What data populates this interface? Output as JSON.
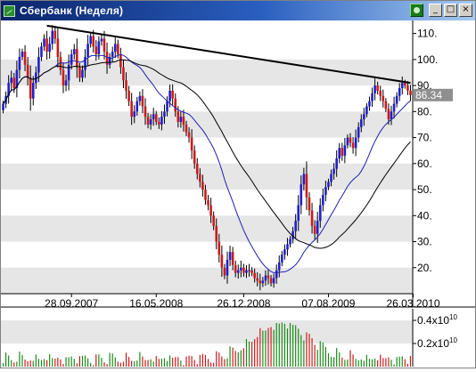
{
  "window": {
    "title": "Сбербанк (Неделя)",
    "controls": {
      "minimize": "_",
      "maximize": "□",
      "close": "×"
    }
  },
  "colors": {
    "background": "#ffffff",
    "stripe": "#e6e6e6",
    "candle_up": "#1f1fcc",
    "candle_down": "#cc1a1a",
    "ma_fast": "#2020b0",
    "ma_slow": "#000000",
    "trendline": "#000000",
    "last_price_bg": "#8f8f8f"
  },
  "chart_data": {
    "type": "candlestick",
    "title": "Сбербанк (Неделя)",
    "xlabel": "",
    "ylabel": "",
    "ylim": [
      10,
      115
    ],
    "y_ticks": [
      "10",
      "20",
      "30",
      "40",
      "50",
      "60",
      "70",
      "80",
      "90",
      "100",
      "110"
    ],
    "y_tick_labels_shown": [
      "",
      "20.",
      "30.",
      "40.",
      "50.",
      "60.",
      "70.",
      "80.",
      "90.",
      "100.",
      "110."
    ],
    "x_tick_labels": [
      "28.09.2007",
      "16.05.2008",
      "26.12.2008",
      "07.08.2009",
      "26.03.2010"
    ],
    "x_tick_positions": [
      25,
      56,
      88,
      119,
      150
    ],
    "last_price": "86.34",
    "grid": "horizontal stripes",
    "bars": [
      {
        "c": 83
      },
      {
        "c": 86
      },
      {
        "c": 91
      },
      {
        "c": 93
      },
      {
        "c": 89
      },
      {
        "c": 96
      },
      {
        "c": 101
      },
      {
        "c": 103
      },
      {
        "c": 98
      },
      {
        "c": 93
      },
      {
        "c": 85
      },
      {
        "c": 91
      },
      {
        "c": 95
      },
      {
        "c": 101
      },
      {
        "c": 105
      },
      {
        "c": 108
      },
      {
        "c": 103
      },
      {
        "c": 106
      },
      {
        "c": 111
      },
      {
        "c": 108
      },
      {
        "c": 101
      },
      {
        "c": 96
      },
      {
        "c": 90
      },
      {
        "c": 92
      },
      {
        "c": 98
      },
      {
        "c": 102
      },
      {
        "c": 104
      },
      {
        "c": 97
      },
      {
        "c": 93
      },
      {
        "c": 96
      },
      {
        "c": 101
      },
      {
        "c": 106
      },
      {
        "c": 109
      },
      {
        "c": 105
      },
      {
        "c": 102
      },
      {
        "c": 107
      },
      {
        "c": 108
      },
      {
        "c": 103
      },
      {
        "c": 98
      },
      {
        "c": 101
      },
      {
        "c": 103
      },
      {
        "c": 106
      },
      {
        "c": 102
      },
      {
        "c": 97
      },
      {
        "c": 92
      },
      {
        "c": 88
      },
      {
        "c": 84
      },
      {
        "c": 78
      },
      {
        "c": 80
      },
      {
        "c": 84
      },
      {
        "c": 86
      },
      {
        "c": 82
      },
      {
        "c": 78
      },
      {
        "c": 75
      },
      {
        "c": 77
      },
      {
        "c": 79
      },
      {
        "c": 76
      },
      {
        "c": 75
      },
      {
        "c": 78
      },
      {
        "c": 80
      },
      {
        "c": 84
      },
      {
        "c": 88
      },
      {
        "c": 85
      },
      {
        "c": 80
      },
      {
        "c": 76
      },
      {
        "c": 78
      },
      {
        "c": 75
      },
      {
        "c": 72
      },
      {
        "c": 70
      },
      {
        "c": 65
      },
      {
        "c": 60
      },
      {
        "c": 56
      },
      {
        "c": 53
      },
      {
        "c": 50
      },
      {
        "c": 46
      },
      {
        "c": 44
      },
      {
        "c": 40
      },
      {
        "c": 36
      },
      {
        "c": 30
      },
      {
        "c": 25
      },
      {
        "c": 20
      },
      {
        "c": 17
      },
      {
        "c": 23
      },
      {
        "c": 26
      },
      {
        "c": 21
      },
      {
        "c": 18
      },
      {
        "c": 19
      },
      {
        "c": 20
      },
      {
        "c": 18
      },
      {
        "c": 19
      },
      {
        "c": 19
      },
      {
        "c": 18
      },
      {
        "c": 16
      },
      {
        "c": 15
      },
      {
        "c": 14
      },
      {
        "c": 15
      },
      {
        "c": 17
      },
      {
        "c": 16
      },
      {
        "c": 14
      },
      {
        "c": 16
      },
      {
        "c": 19
      },
      {
        "c": 22
      },
      {
        "c": 25
      },
      {
        "c": 27
      },
      {
        "c": 29
      },
      {
        "c": 31
      },
      {
        "c": 34
      },
      {
        "c": 38
      },
      {
        "c": 44
      },
      {
        "c": 52
      },
      {
        "c": 56
      },
      {
        "c": 47
      },
      {
        "c": 42
      },
      {
        "c": 36
      },
      {
        "c": 33
      },
      {
        "c": 38
      },
      {
        "c": 44
      },
      {
        "c": 48
      },
      {
        "c": 51
      },
      {
        "c": 53
      },
      {
        "c": 56
      },
      {
        "c": 58
      },
      {
        "c": 62
      },
      {
        "c": 66
      },
      {
        "c": 63
      },
      {
        "c": 67
      },
      {
        "c": 70
      },
      {
        "c": 68
      },
      {
        "c": 66
      },
      {
        "c": 70
      },
      {
        "c": 74
      },
      {
        "c": 77
      },
      {
        "c": 79
      },
      {
        "c": 82
      },
      {
        "c": 84
      },
      {
        "c": 87
      },
      {
        "c": 90
      },
      {
        "c": 88
      },
      {
        "c": 86
      },
      {
        "c": 84
      },
      {
        "c": 81
      },
      {
        "c": 77
      },
      {
        "c": 80
      },
      {
        "c": 83
      },
      {
        "c": 86
      },
      {
        "c": 89
      },
      {
        "c": 91
      },
      {
        "c": 90
      },
      {
        "c": 88
      },
      {
        "c": 86.34
      }
    ],
    "trendline_points": [
      {
        "bar": 16,
        "value": 113
      },
      {
        "bar": 149,
        "value": 91
      }
    ],
    "indicators": [
      "moving average (fast, blue)",
      "moving average (slow, black)"
    ],
    "volume": {
      "y_ticks": [
        "0.2x10^10",
        "0.4x10^10"
      ],
      "y_tick_labels_shown": [
        "0.2x10",
        "0.4x10"
      ],
      "y_tick_exponent": "10",
      "ylim": [
        0,
        0.5
      ]
    }
  }
}
